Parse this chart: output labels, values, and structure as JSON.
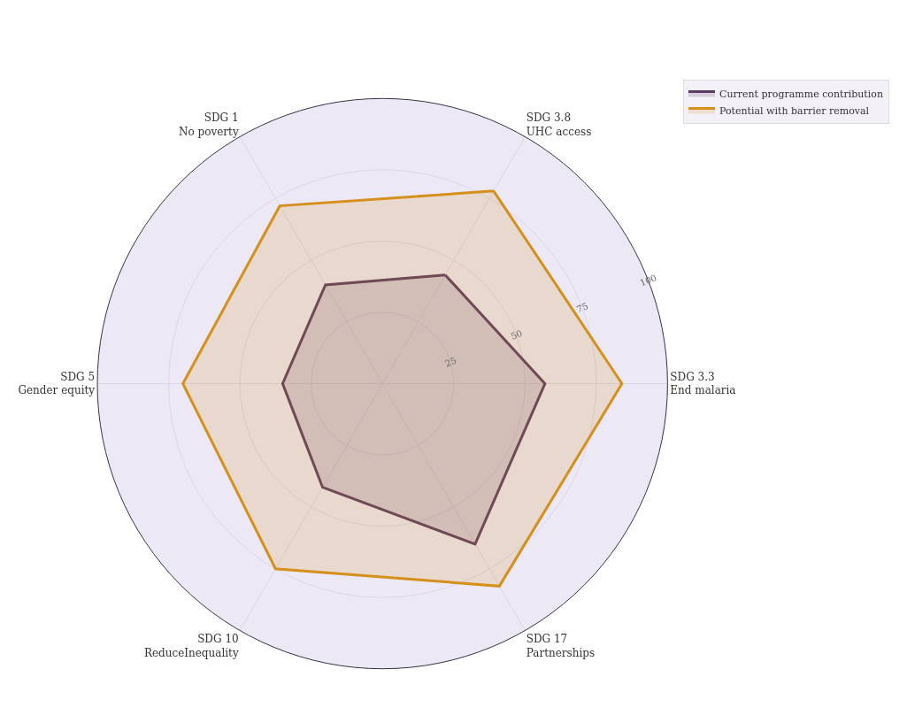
{
  "chart_data": {
    "type": "radar",
    "categories": [
      "SDG 3.8\nUHC access",
      "SDG 3.3\nEnd malaria",
      "SDG 17\nPartnerships",
      "SDG 10\nReduceInequality",
      "SDG 5\nGender equity",
      "SDG 1\nNo poverty"
    ],
    "series": [
      {
        "name": "Current programme contribution",
        "color": "#5b3a63",
        "values": [
          44,
          57,
          65,
          42,
          35,
          40
        ]
      },
      {
        "name": "Potential with barrier removal",
        "color": "#d4901a",
        "values": [
          78,
          84,
          82,
          75,
          70,
          72
        ]
      }
    ],
    "ylim": [
      0,
      100
    ],
    "yticks": [
      25,
      50,
      75,
      100
    ],
    "grid": true,
    "legend": "top right",
    "marker": "none",
    "line_style": "solid"
  }
}
